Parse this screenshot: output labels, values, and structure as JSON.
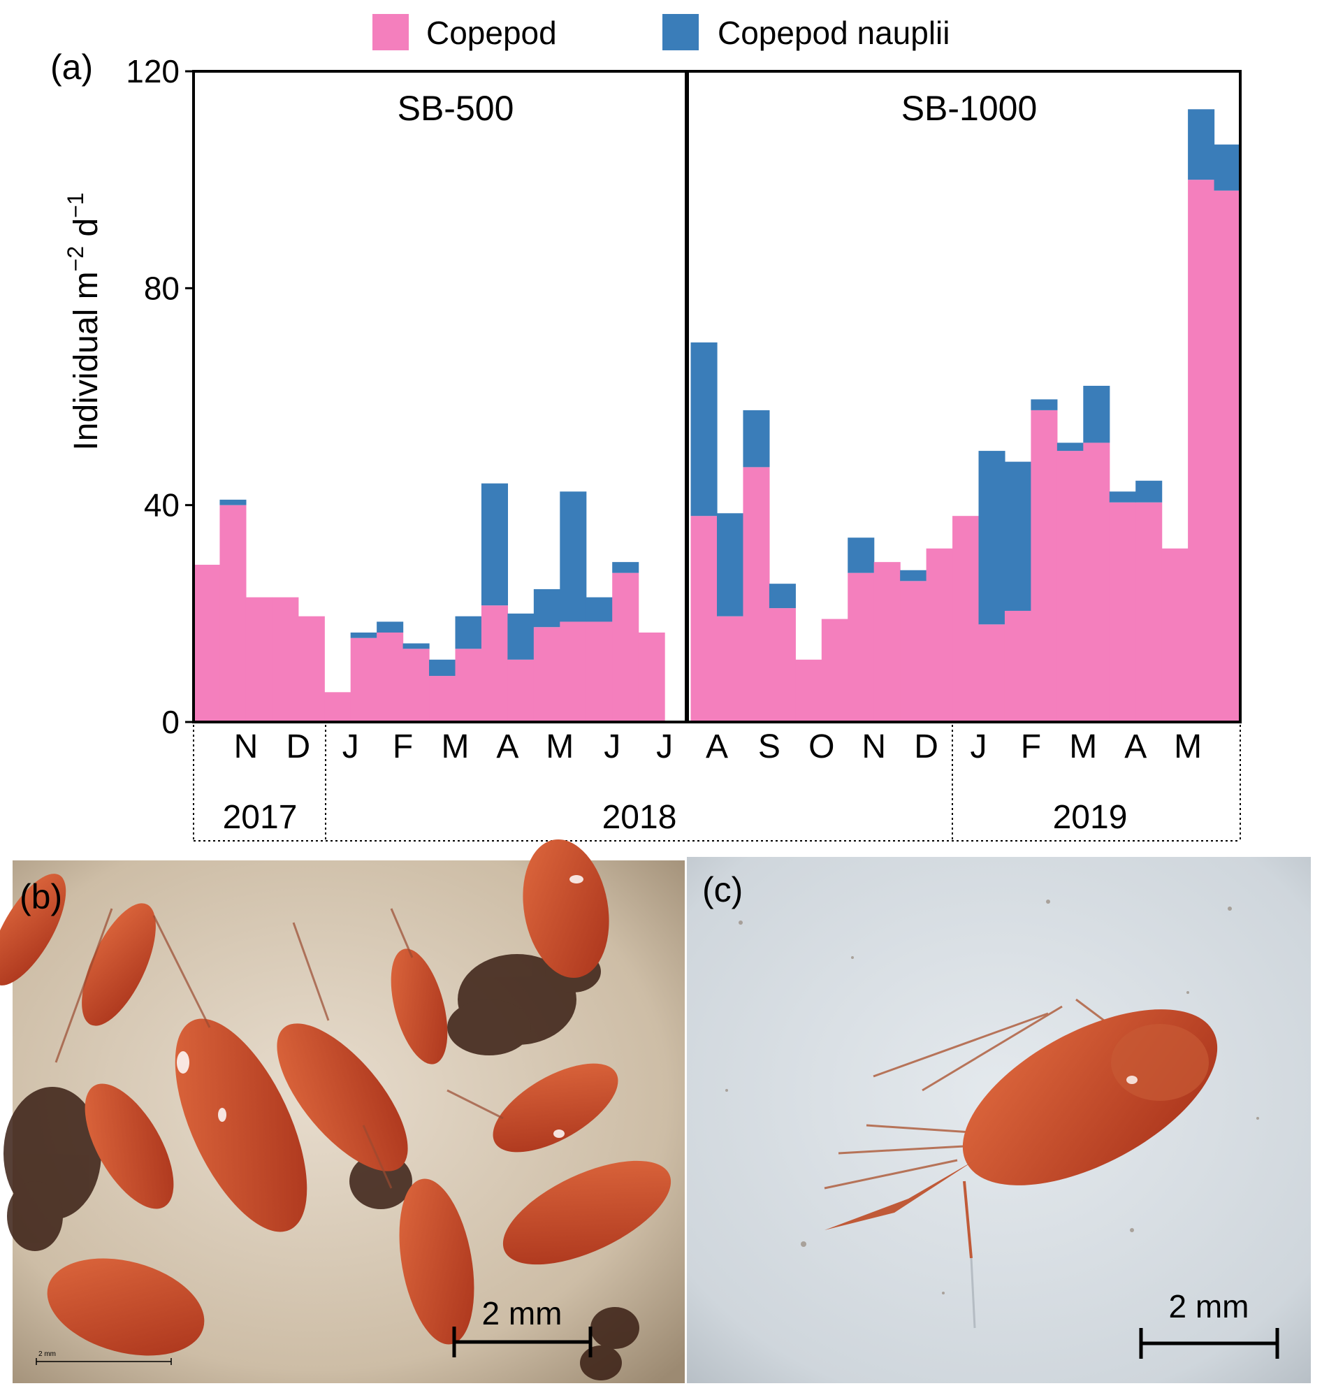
{
  "chart_data": {
    "type": "bar",
    "stacked": true,
    "panel_label": "(a)",
    "title": "",
    "ylabel": "Individual m",
    "ylabel_sup1": "−2",
    "ylabel_mid": " d",
    "ylabel_sup2": "−1",
    "xlabel": "",
    "ylim": [
      0,
      120
    ],
    "yticks": [
      0,
      40,
      80,
      120
    ],
    "ytick_labels": [
      "0",
      "40",
      "80",
      "120"
    ],
    "grid": false,
    "legend_position": "top-center",
    "legend": [
      {
        "name": "Copepod",
        "color": "#f47fbd"
      },
      {
        "name": "Copepod nauplii",
        "color": "#3a7db9"
      }
    ],
    "sections": [
      {
        "label": "SB-500"
      },
      {
        "label": "SB-1000"
      }
    ],
    "month_labels": [
      "N",
      "D",
      "J",
      "F",
      "M",
      "A",
      "M",
      "J",
      "J",
      "A",
      "S",
      "O",
      "N",
      "D",
      "J",
      "F",
      "M",
      "A",
      "M"
    ],
    "year_labels": [
      "2017",
      "2018",
      "2019"
    ],
    "series": [
      {
        "name": "Copepod",
        "color": "#f47fbd",
        "values": [
          29,
          40,
          23,
          23,
          19.5,
          5.5,
          15.5,
          16.5,
          13.5,
          8.5,
          13.5,
          21.5,
          11.5,
          17.5,
          18.5,
          18.5,
          27.5,
          16.5,
          0,
          38,
          19.5,
          47,
          21,
          11.5,
          19,
          27.5,
          29.5,
          26,
          32,
          38,
          18,
          20.5,
          57.5,
          50,
          51.5,
          40.5,
          40.5,
          32,
          100,
          98
        ]
      },
      {
        "name": "Copepod nauplii",
        "color": "#3a7db9",
        "values": [
          0,
          1,
          0,
          0,
          0,
          0,
          1,
          2,
          1,
          3,
          6,
          22.5,
          8.5,
          7,
          24,
          4.5,
          2,
          0,
          0,
          32,
          19,
          10.5,
          4.5,
          0,
          0,
          6.5,
          0,
          2,
          0,
          0,
          32,
          27.5,
          2,
          1.5,
          10.5,
          2,
          4,
          0,
          13,
          8.5
        ]
      }
    ]
  },
  "photos": [
    {
      "panel_label": "(b)",
      "scale_bar_label": "2 mm",
      "micro_scale_label": "2 mm"
    },
    {
      "panel_label": "(c)",
      "scale_bar_label": "2 mm"
    }
  ]
}
